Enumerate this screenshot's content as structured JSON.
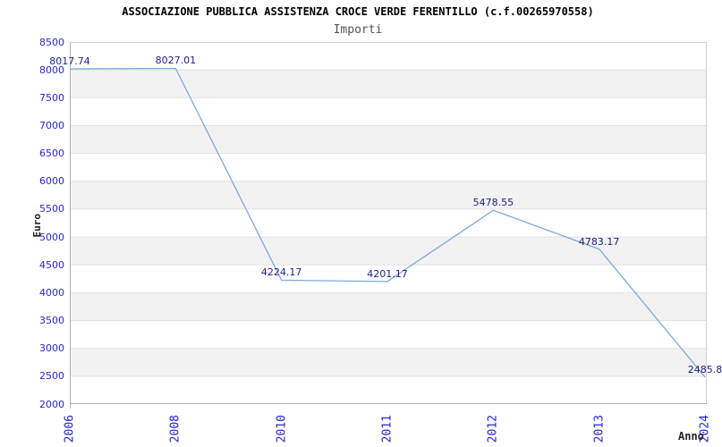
{
  "chart_data": {
    "type": "line",
    "title": "ASSOCIAZIONE PUBBLICA ASSISTENZA CROCE VERDE FERENTILLO (c.f.00265970558)",
    "subtitle": "Importi",
    "xlabel": "Anno",
    "ylabel": "Euro",
    "categories": [
      "2006",
      "2008",
      "2010",
      "2011",
      "2012",
      "2013",
      "2024"
    ],
    "series": [
      {
        "name": "Importi",
        "values": [
          8017.74,
          8027.01,
          4224.17,
          4201.17,
          5478.55,
          4783.17,
          2485.8
        ]
      }
    ],
    "point_labels": [
      "8017.74",
      "8027.01",
      "4224.17",
      "4201.17",
      "5478.55",
      "4783.17",
      "2485.8"
    ],
    "ylim": [
      2000,
      8500
    ],
    "ytick_step": 500,
    "grid": true,
    "alternating_bands": true,
    "legend_position": "none",
    "colors": {
      "line": "#7aaade",
      "point_label": "#20208c",
      "y_tick_label": "#2626cf",
      "x_tick_label": "#2424cc",
      "band": "#f2f2f2",
      "gridline": "#e2e2e2",
      "plot_border": "#d0d0d0",
      "axis_line": "#b0b0b0",
      "title": "#000000",
      "subtitle": "#545454",
      "axis_title": "#222222",
      "background": "#ffffff"
    }
  }
}
